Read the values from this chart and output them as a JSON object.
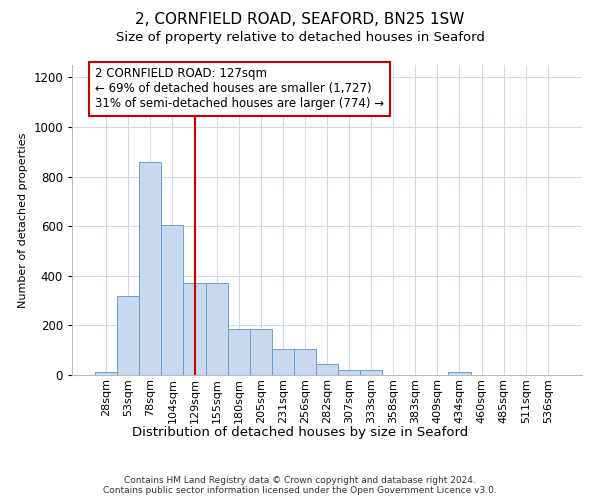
{
  "title1": "2, CORNFIELD ROAD, SEAFORD, BN25 1SW",
  "title2": "Size of property relative to detached houses in Seaford",
  "xlabel": "Distribution of detached houses by size in Seaford",
  "ylabel": "Number of detached properties",
  "categories": [
    "28sqm",
    "53sqm",
    "78sqm",
    "104sqm",
    "129sqm",
    "155sqm",
    "180sqm",
    "205sqm",
    "231sqm",
    "256sqm",
    "282sqm",
    "307sqm",
    "333sqm",
    "358sqm",
    "383sqm",
    "409sqm",
    "434sqm",
    "460sqm",
    "485sqm",
    "511sqm",
    "536sqm"
  ],
  "values": [
    12,
    320,
    860,
    605,
    370,
    370,
    185,
    185,
    105,
    105,
    45,
    20,
    20,
    0,
    0,
    0,
    12,
    0,
    0,
    0,
    0
  ],
  "bar_color": "#c8d9ee",
  "bar_edge_color": "#6a9fd0",
  "ref_line_index": 4,
  "ref_line_color": "#cc0000",
  "annotation_line1": "2 CORNFIELD ROAD: 127sqm",
  "annotation_line2": "← 69% of detached houses are smaller (1,727)",
  "annotation_line3": "31% of semi-detached houses are larger (774) →",
  "annotation_box_edgecolor": "#cc0000",
  "ylim": [
    0,
    1250
  ],
  "yticks": [
    0,
    200,
    400,
    600,
    800,
    1000,
    1200
  ],
  "footnote_line1": "Contains HM Land Registry data © Crown copyright and database right 2024.",
  "footnote_line2": "Contains public sector information licensed under the Open Government Licence v3.0.",
  "bg_color": "#ffffff",
  "grid_color": "#d0dcea",
  "title1_fontsize": 11,
  "title2_fontsize": 9.5,
  "annotation_fontsize": 8.5,
  "ylabel_fontsize": 8,
  "xlabel_fontsize": 9.5,
  "ytick_fontsize": 8.5,
  "xtick_fontsize": 8
}
